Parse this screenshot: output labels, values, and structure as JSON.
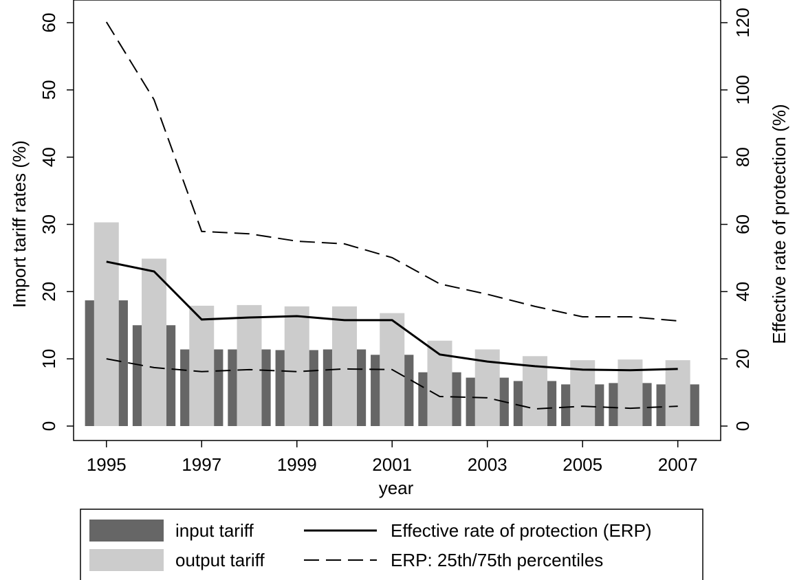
{
  "chart_data": {
    "type": "bar-line",
    "x_label": "year",
    "y_label": "Import tariff rates (%)",
    "y2_label": "Effective rate of protection (%)",
    "x": [
      1995,
      1996,
      1997,
      1998,
      1999,
      2000,
      2001,
      2002,
      2003,
      2004,
      2005,
      2006,
      2007
    ],
    "xlim": [
      1994.31,
      2007.9
    ],
    "xticks": [
      1995,
      1997,
      1999,
      2001,
      2003,
      2005,
      2007
    ],
    "ylim": [
      0,
      60
    ],
    "yticks": [
      0,
      10,
      20,
      30,
      40,
      50,
      60
    ],
    "y2lim": [
      0,
      120
    ],
    "y2ticks": [
      0,
      20,
      40,
      60,
      80,
      100,
      120
    ],
    "series": [
      {
        "name": "input tariff",
        "kind": "bar",
        "color": "#666666",
        "values": [
          18.7,
          15.0,
          11.4,
          11.4,
          11.3,
          11.4,
          10.6,
          8.0,
          7.2,
          6.7,
          6.2,
          6.4,
          6.2
        ]
      },
      {
        "name": "output tariff",
        "kind": "bar",
        "color": "#cccccc",
        "values": [
          30.3,
          24.9,
          17.9,
          18.0,
          17.8,
          17.8,
          16.8,
          12.7,
          11.4,
          10.4,
          9.8,
          9.9,
          9.8
        ]
      },
      {
        "name": "Effective rate of protection (ERP)",
        "kind": "line",
        "axis": "y2",
        "color": "#000000",
        "values": [
          48.9,
          46.0,
          31.7,
          32.3,
          32.7,
          31.5,
          31.5,
          21.3,
          19.2,
          17.8,
          16.8,
          16.6,
          17.0
        ]
      },
      {
        "name": "ERP: 25th/75th percentiles",
        "kind": "dashed-band",
        "axis": "y2",
        "color": "#000000",
        "upper": [
          120.2,
          97.1,
          57.9,
          57.2,
          55.0,
          54.2,
          50.1,
          42.3,
          39.2,
          35.6,
          32.5,
          32.5,
          31.3
        ],
        "lower": [
          20.0,
          17.4,
          16.2,
          16.8,
          16.2,
          17.0,
          16.8,
          8.8,
          8.4,
          5.1,
          5.9,
          5.3,
          5.9
        ]
      }
    ]
  }
}
